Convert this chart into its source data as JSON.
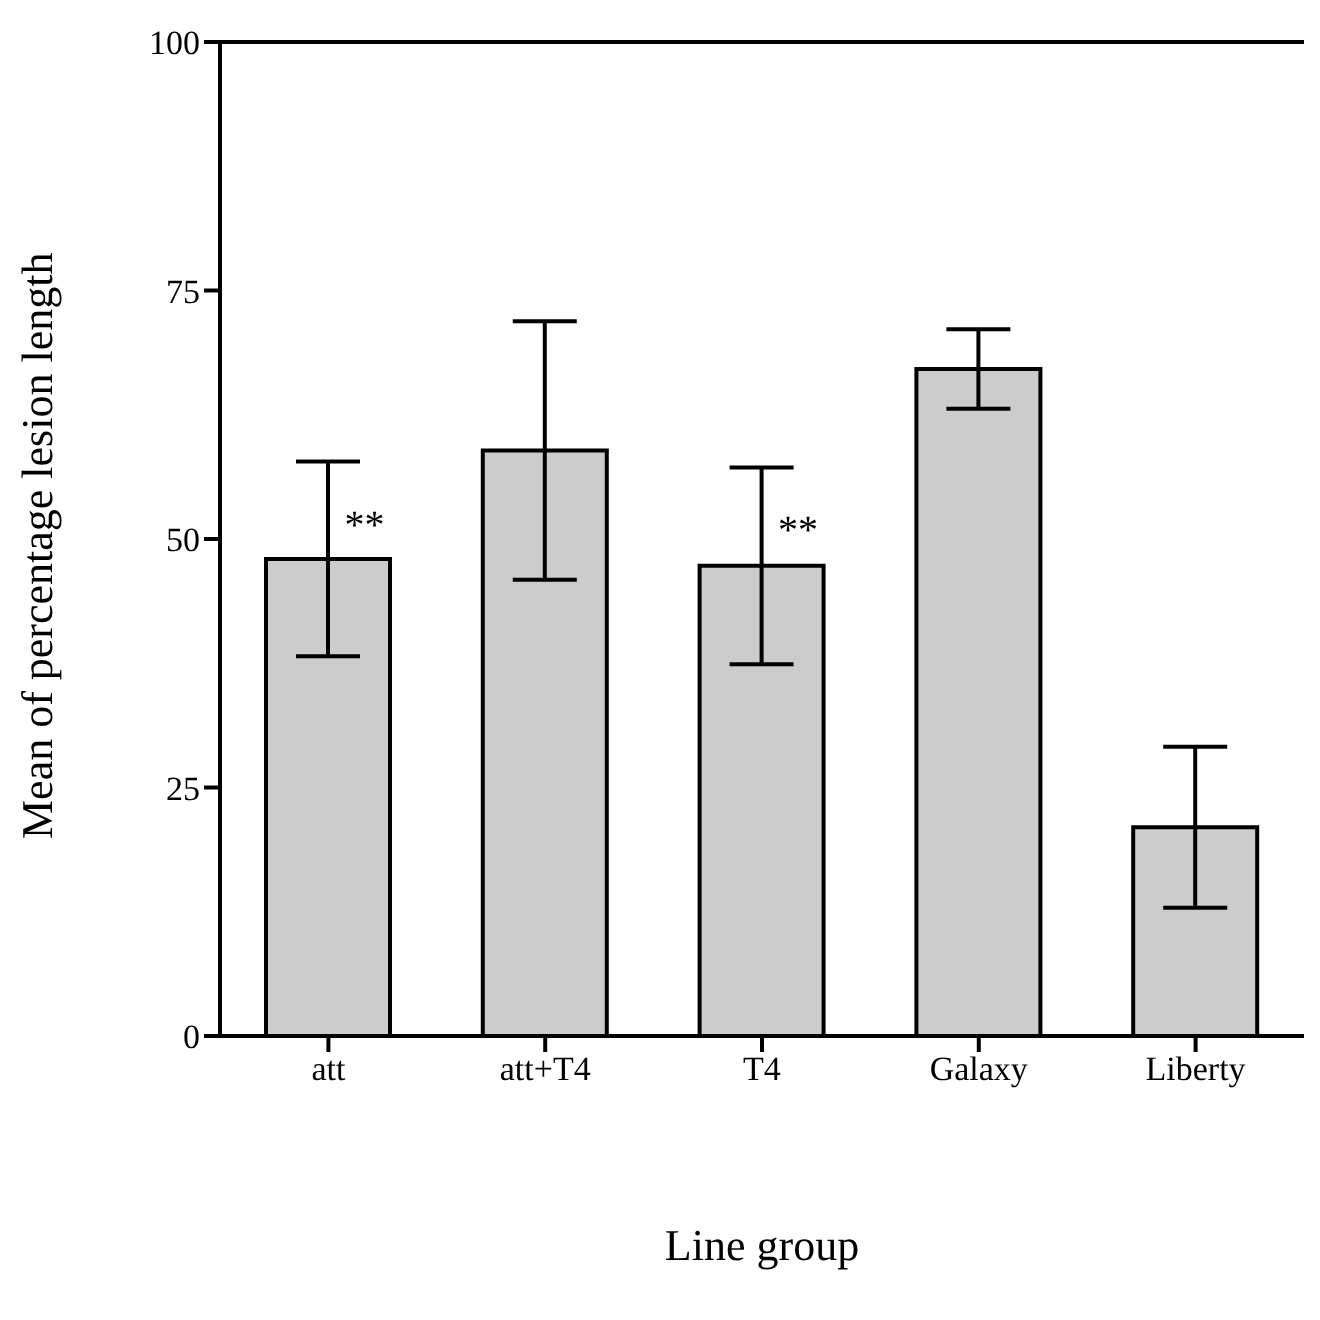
{
  "chart_data": {
    "type": "bar",
    "xlabel": "Line group",
    "ylabel": "Mean of percentage lesion length",
    "categories": [
      "att",
      "att+T4",
      "T4",
      "Galaxy",
      "Liberty"
    ],
    "values": [
      48,
      58.9,
      47.3,
      67.1,
      21
    ],
    "errors": [
      9.8,
      13,
      9.9,
      4,
      8.1
    ],
    "color": "#cccccc",
    "ylim": [
      0,
      100
    ],
    "yticks": [
      0,
      25,
      50,
      75,
      100
    ],
    "grid": false,
    "annotations": [
      {
        "text": "**",
        "x": "att",
        "y": 51.5
      },
      {
        "text": "**",
        "x": "T4",
        "y": 51
      }
    ]
  }
}
